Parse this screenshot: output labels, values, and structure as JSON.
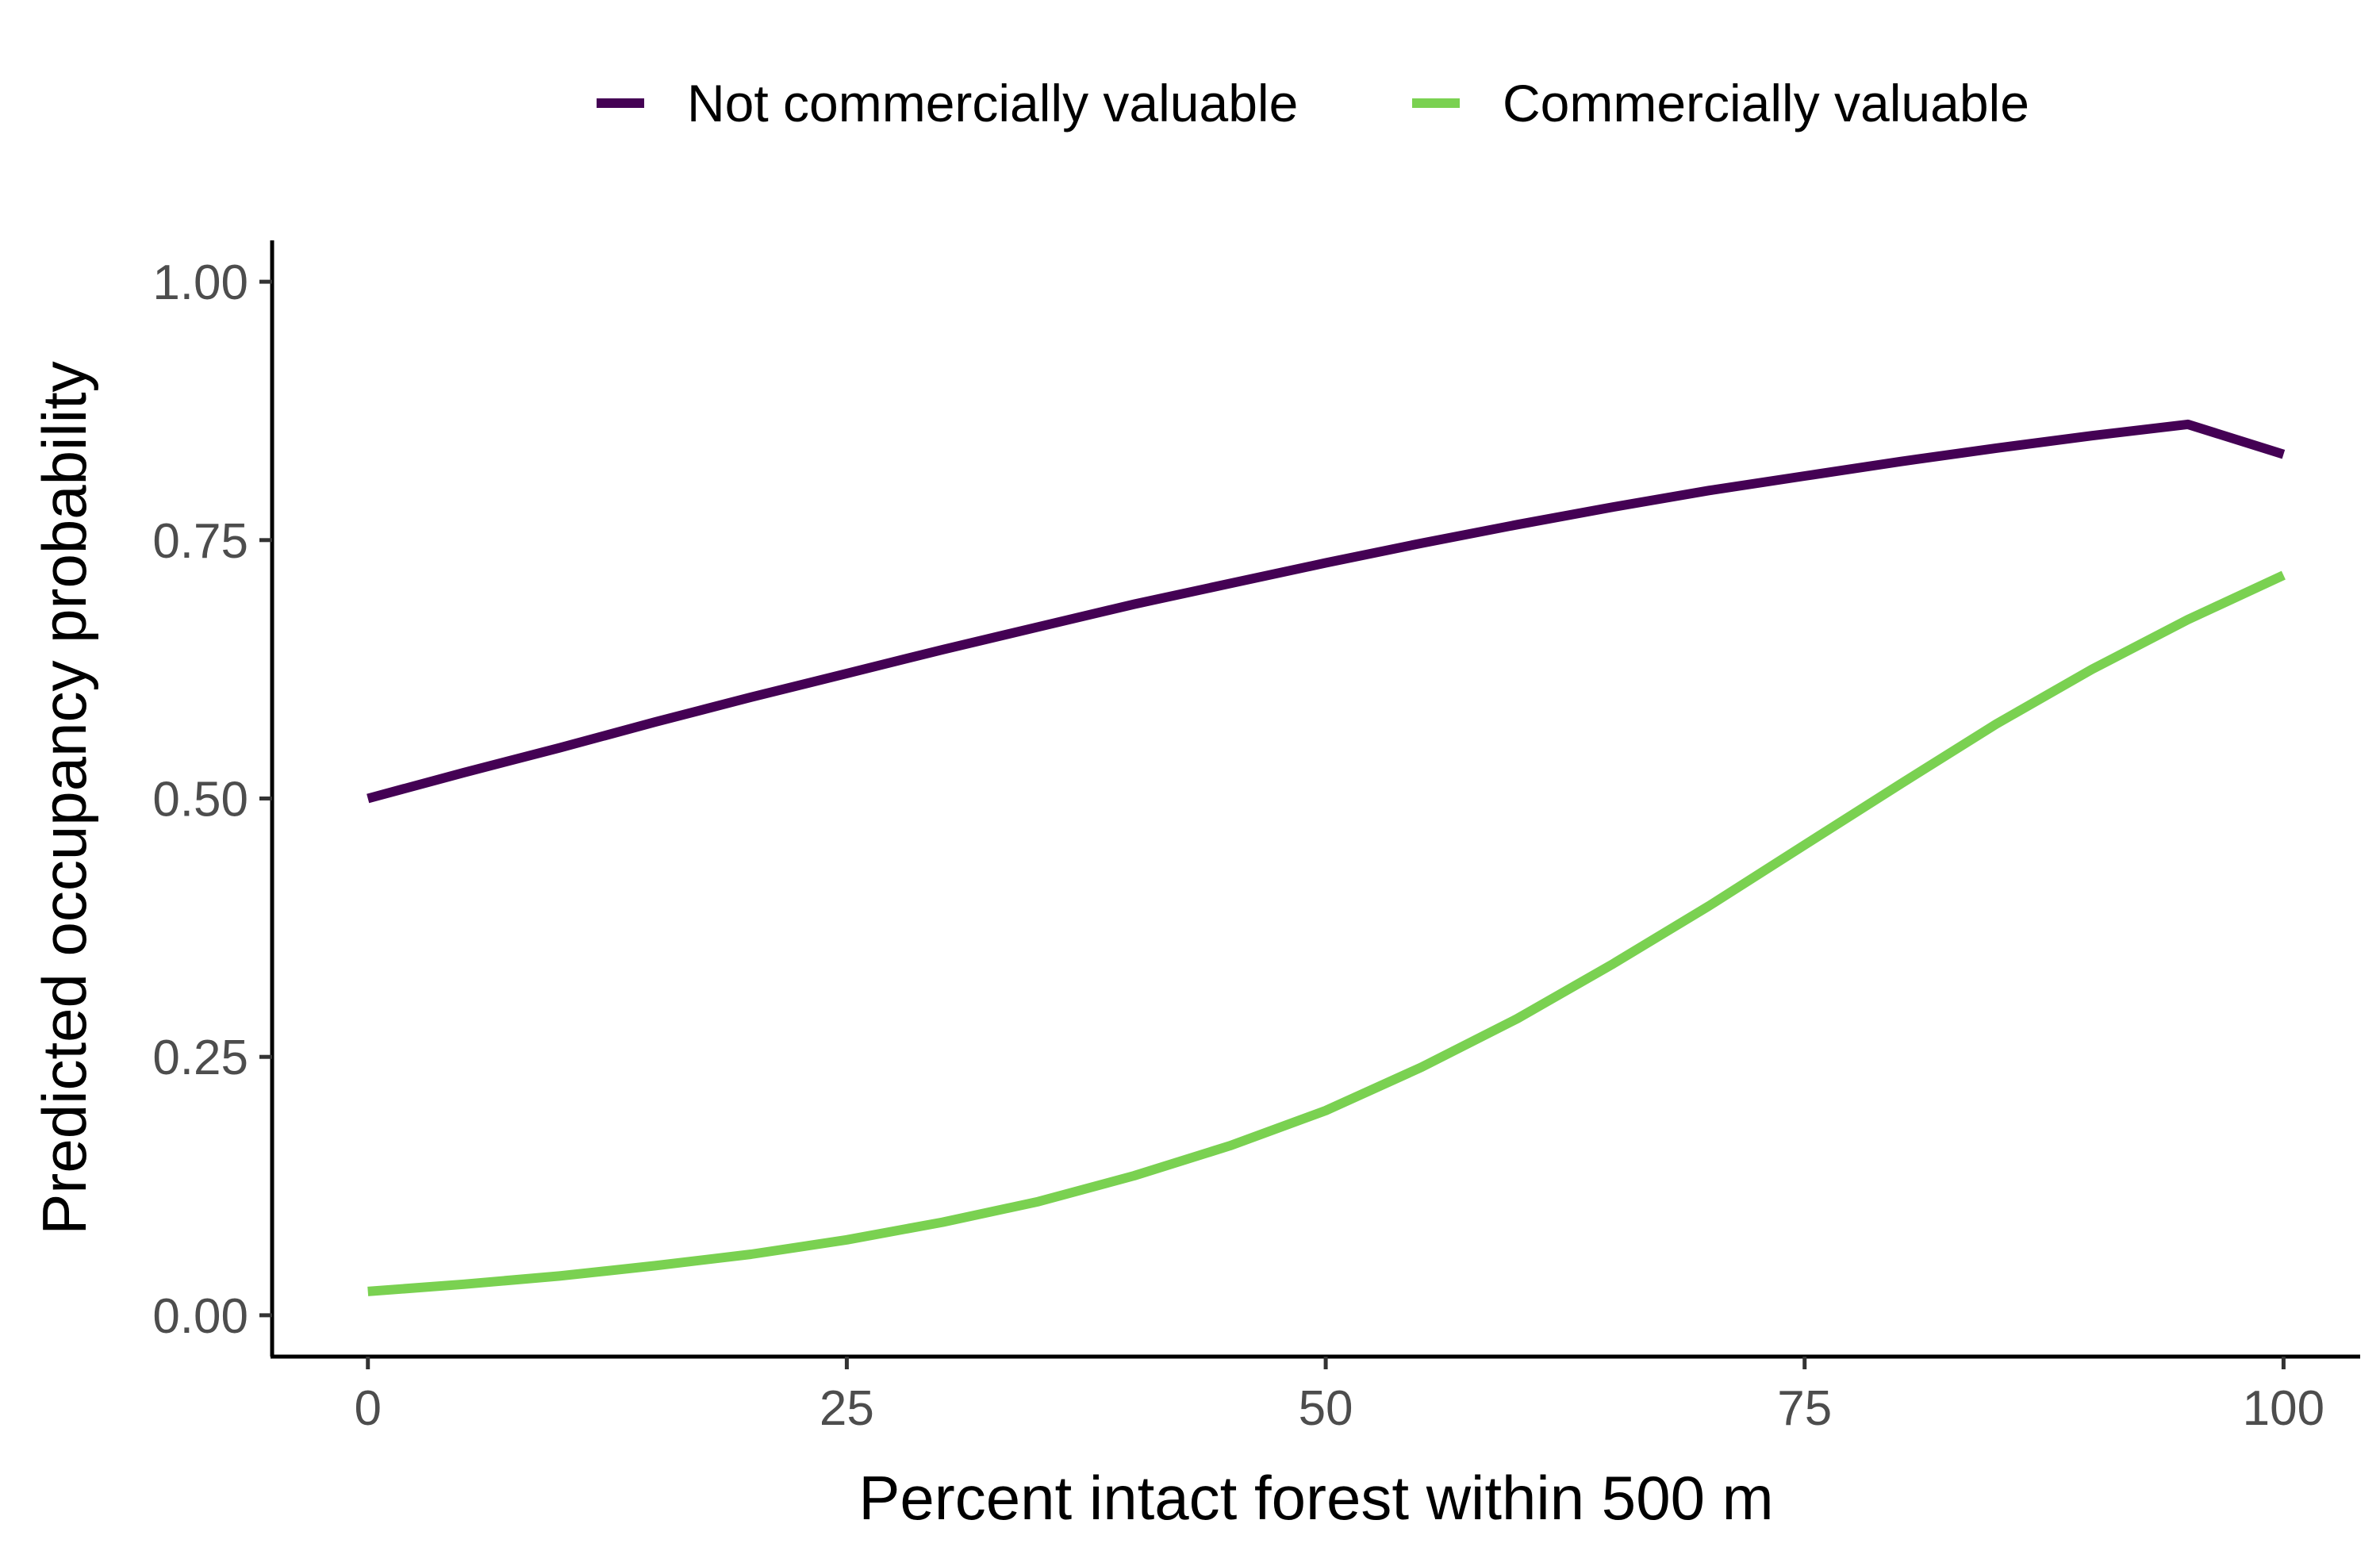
{
  "chart_data": {
    "type": "line",
    "title": "",
    "xlabel": "Percent intact forest within 500 m",
    "ylabel": "Predicted occupancy probability",
    "xlim": [
      -5,
      104
    ],
    "ylim": [
      -0.04,
      1.04
    ],
    "x_ticks": [
      0,
      25,
      50,
      75,
      100
    ],
    "x_tick_labels": [
      "0",
      "25",
      "50",
      "75",
      "100"
    ],
    "y_ticks": [
      0,
      0.25,
      0.5,
      0.75,
      1.0
    ],
    "y_tick_labels": [
      "0.00",
      "0.25",
      "0.50",
      "0.75",
      "1.00"
    ],
    "grid": false,
    "legend_position": "top",
    "x": [
      0,
      5,
      10,
      15,
      20,
      25,
      30,
      35,
      40,
      45,
      50,
      55,
      60,
      65,
      70,
      75,
      80,
      85,
      90,
      95,
      100
    ],
    "series": [
      {
        "name": "Not commercially valuable",
        "color": "#440154",
        "values": [
          0.5,
          0.525,
          0.549,
          0.574,
          0.598,
          0.621,
          0.644,
          0.666,
          0.688,
          0.708,
          0.728,
          0.747,
          0.765,
          0.782,
          0.798,
          0.812,
          0.826,
          0.839,
          0.851,
          0.862,
          0.833
        ]
      },
      {
        "name": "Commercially valuable",
        "color": "#7AD151",
        "values": [
          0.023,
          0.03,
          0.038,
          0.048,
          0.059,
          0.073,
          0.09,
          0.11,
          0.135,
          0.164,
          0.198,
          0.24,
          0.287,
          0.34,
          0.396,
          0.455,
          0.514,
          0.572,
          0.625,
          0.673,
          0.716
        ]
      }
    ]
  }
}
